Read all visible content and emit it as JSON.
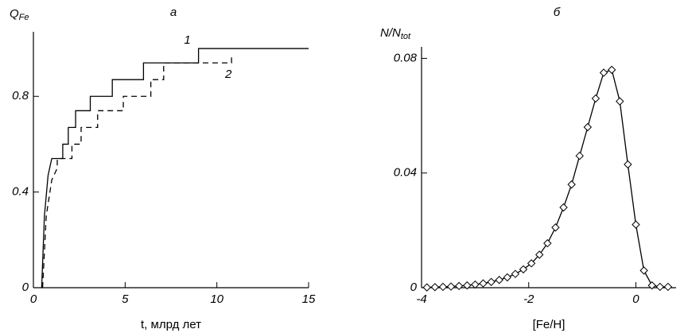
{
  "chart_data": [
    {
      "type": "line",
      "title": "а",
      "y_label": "Q",
      "y_label_sub": "Fe",
      "x_label": "t, млрд лет",
      "xlim": [
        0,
        15
      ],
      "xticks": [
        0,
        5,
        10,
        15
      ],
      "ylim": [
        0,
        1.07
      ],
      "yticks": [
        0,
        0.4,
        0.8
      ],
      "series": [
        {
          "name": "1",
          "color": "#000000",
          "dash": false,
          "x": [
            0.45,
            0.6,
            0.8,
            1.0,
            1.1,
            1.6,
            1.6,
            1.9,
            1.9,
            2.3,
            2.3,
            3.1,
            3.1,
            4.3,
            4.3,
            6.0,
            6.0,
            9.0,
            9.0,
            15
          ],
          "values": [
            0,
            0.3,
            0.47,
            0.54,
            0.54,
            0.54,
            0.6,
            0.6,
            0.67,
            0.67,
            0.74,
            0.74,
            0.8,
            0.8,
            0.87,
            0.87,
            0.94,
            0.94,
            1.0,
            1.0
          ]
        },
        {
          "name": "2",
          "color": "#000000",
          "dash": true,
          "x": [
            0.5,
            0.7,
            1.0,
            1.3,
            1.3,
            2.1,
            2.1,
            2.6,
            2.6,
            3.5,
            3.5,
            4.9,
            4.9,
            6.4,
            6.4,
            7.1,
            7.1,
            10.8,
            10.8
          ],
          "values": [
            0,
            0.3,
            0.45,
            0.5,
            0.54,
            0.54,
            0.6,
            0.6,
            0.67,
            0.67,
            0.74,
            0.74,
            0.8,
            0.8,
            0.87,
            0.87,
            0.94,
            0.94,
            0.97
          ]
        }
      ]
    },
    {
      "type": "line",
      "title": "б",
      "y_label": "N/N",
      "y_label_sub": "tot",
      "x_label": "[Fe/H]",
      "xlim": [
        -4,
        0.75
      ],
      "xticks": [
        -4,
        -2,
        0
      ],
      "ylim": [
        0,
        0.084
      ],
      "yticks": [
        0,
        0.04,
        0.08
      ],
      "series": [
        {
          "color": "#000000",
          "dash": false,
          "marker": "diamond",
          "x": [
            -3.9,
            -3.75,
            -3.6,
            -3.45,
            -3.3,
            -3.15,
            -3.0,
            -2.85,
            -2.7,
            -2.55,
            -2.4,
            -2.25,
            -2.1,
            -1.95,
            -1.8,
            -1.65,
            -1.5,
            -1.35,
            -1.2,
            -1.05,
            -0.9,
            -0.75,
            -0.6,
            -0.45,
            -0.3,
            -0.15,
            0,
            0.15,
            0.3,
            0.45,
            0.6
          ],
          "values": [
            0.0001,
            0.0002,
            0.0003,
            0.0004,
            0.0006,
            0.0008,
            0.0011,
            0.0015,
            0.002,
            0.0027,
            0.0036,
            0.0048,
            0.0064,
            0.0085,
            0.0115,
            0.0155,
            0.021,
            0.028,
            0.036,
            0.046,
            0.056,
            0.066,
            0.075,
            0.076,
            0.065,
            0.043,
            0.022,
            0.006,
            0.0008,
            0.0003,
            0.0003
          ]
        }
      ]
    }
  ]
}
